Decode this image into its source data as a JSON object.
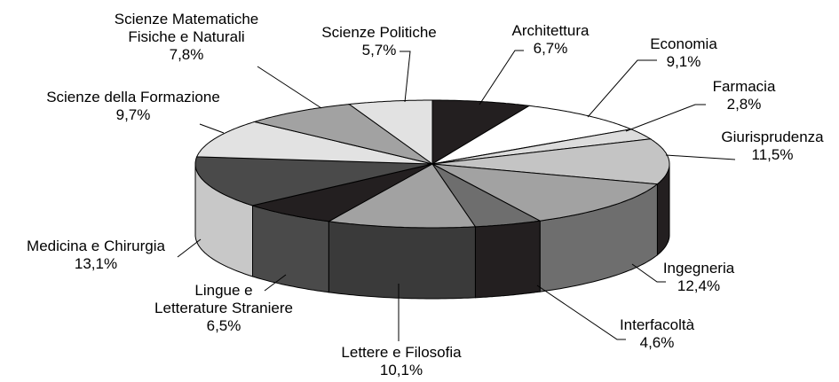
{
  "chart_data": {
    "type": "pie3d",
    "categories": [
      "Architettura",
      "Economia",
      "Farmacia",
      "Giurisprudenza",
      "Ingegneria",
      "Interfacoltà",
      "Lettere e Filosofia",
      "Lingue e\nLetterature Straniere",
      "Medicina e Chirurgia",
      "Scienze della Formazione",
      "Scienze Matematiche\nFisiche e Naturali",
      "Scienze Politiche"
    ],
    "values": [
      6.7,
      9.1,
      2.8,
      11.5,
      12.4,
      4.6,
      10.1,
      6.5,
      13.1,
      9.7,
      7.8,
      5.7
    ],
    "value_labels": [
      "6,7%",
      "9,1%",
      "2,8%",
      "11,5%",
      "12,4%",
      "4,6%",
      "10,1%",
      "6,5%",
      "13,1%",
      "9,7%",
      "7,8%",
      "5,7%"
    ],
    "colors": [
      "#231f20",
      "#ffffff",
      "#dcdcdc",
      "#c4c4c4",
      "#a2a2a2",
      "#6e6e6e",
      "#a2a2a2",
      "#231f20",
      "#4a4a4a",
      "#e2e2e2",
      "#a2a2a2",
      "#e2e2e2"
    ],
    "side_colors": [
      "#231f20",
      "#cccccc",
      "#aaaaaa",
      "#231f20",
      "#6e6e6e",
      "#231f20",
      "#3a3a3a",
      "#4a4a4a",
      "#c8c8c8",
      "#bbbbbb",
      "#777777",
      "#bbbbbb"
    ]
  }
}
